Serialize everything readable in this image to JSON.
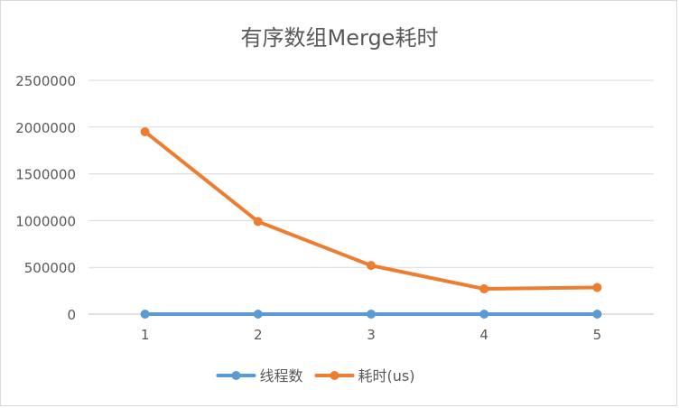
{
  "chart_data": {
    "type": "line",
    "title": "有序数组Merge耗时",
    "categories": [
      "1",
      "2",
      "3",
      "4",
      "5"
    ],
    "series": [
      {
        "name": "线程数",
        "color": "#5b9bd5",
        "values": [
          1,
          2,
          3,
          4,
          5
        ]
      },
      {
        "name": "耗时(us)",
        "color": "#ed7d31",
        "values": [
          1950000,
          990000,
          520000,
          270000,
          285000
        ]
      }
    ],
    "ylim": [
      0,
      2500000
    ],
    "yticks": [
      "0",
      "500000",
      "1000000",
      "1500000",
      "2000000",
      "2500000"
    ],
    "grid": true,
    "legend": "bottom",
    "xlabel": "",
    "ylabel": ""
  }
}
